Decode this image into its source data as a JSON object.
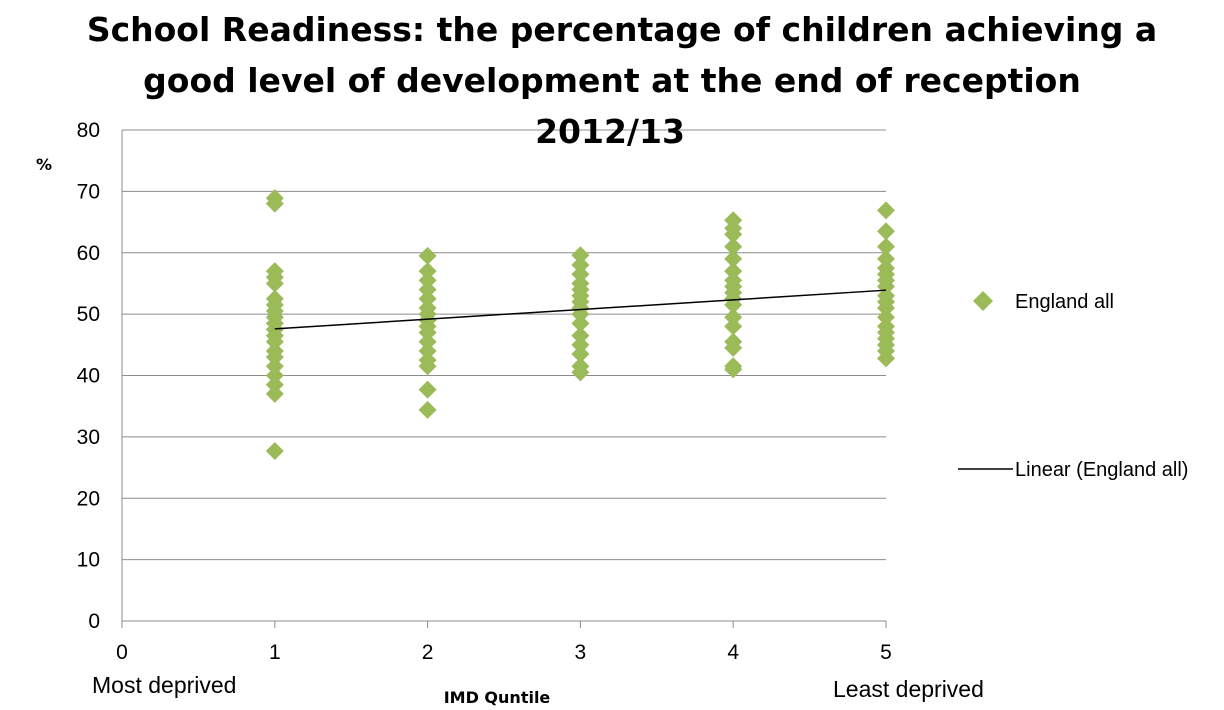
{
  "chart_data": {
    "type": "scatter",
    "title_lines": [
      "School Readiness: the percentage of children achieving a",
      "good level of development at the end of reception",
      "2012/13"
    ],
    "xlabel": "IMD Quntile",
    "ylabel": "%",
    "x_caption_left": "Most deprived",
    "x_caption_right": "Least deprived",
    "xlim": [
      0,
      5
    ],
    "ylim": [
      0,
      80
    ],
    "xticks": [
      0,
      1,
      2,
      3,
      4,
      5
    ],
    "yticks": [
      0,
      10,
      20,
      30,
      40,
      50,
      60,
      70,
      80
    ],
    "grid": "horizontal",
    "legend_position": "right",
    "series": [
      {
        "name": "England all",
        "marker": "diamond",
        "color": "#9BBB59",
        "points": [
          [
            1,
            68.9
          ],
          [
            1,
            68.0
          ],
          [
            1,
            57.0
          ],
          [
            1,
            56.0
          ],
          [
            1,
            55.0
          ],
          [
            1,
            52.5
          ],
          [
            1,
            51.5
          ],
          [
            1,
            50.5
          ],
          [
            1,
            49.5
          ],
          [
            1,
            48.5
          ],
          [
            1,
            47.5
          ],
          [
            1,
            46.5
          ],
          [
            1,
            45.5
          ],
          [
            1,
            44.0
          ],
          [
            1,
            43.0
          ],
          [
            1,
            41.5
          ],
          [
            1,
            40.0
          ],
          [
            1,
            38.5
          ],
          [
            1,
            37.0
          ],
          [
            1,
            27.7
          ],
          [
            2,
            59.5
          ],
          [
            2,
            57.0
          ],
          [
            2,
            55.5
          ],
          [
            2,
            54.0
          ],
          [
            2,
            52.5
          ],
          [
            2,
            51.0
          ],
          [
            2,
            50.0
          ],
          [
            2,
            49.0
          ],
          [
            2,
            48.0
          ],
          [
            2,
            47.0
          ],
          [
            2,
            45.5
          ],
          [
            2,
            44.0
          ],
          [
            2,
            42.5
          ],
          [
            2,
            41.5
          ],
          [
            2,
            37.7
          ],
          [
            2,
            34.4
          ],
          [
            3,
            59.6
          ],
          [
            3,
            58.0
          ],
          [
            3,
            56.5
          ],
          [
            3,
            55.0
          ],
          [
            3,
            54.0
          ],
          [
            3,
            53.0
          ],
          [
            3,
            52.0
          ],
          [
            3,
            51.0
          ],
          [
            3,
            50.0
          ],
          [
            3,
            48.5
          ],
          [
            3,
            46.5
          ],
          [
            3,
            45.0
          ],
          [
            3,
            43.5
          ],
          [
            3,
            41.5
          ],
          [
            3,
            40.5
          ],
          [
            4,
            65.3
          ],
          [
            4,
            64.0
          ],
          [
            4,
            63.0
          ],
          [
            4,
            61.0
          ],
          [
            4,
            59.0
          ],
          [
            4,
            57.0
          ],
          [
            4,
            55.5
          ],
          [
            4,
            54.5
          ],
          [
            4,
            53.5
          ],
          [
            4,
            52.5
          ],
          [
            4,
            51.5
          ],
          [
            4,
            49.5
          ],
          [
            4,
            48.0
          ],
          [
            4,
            45.5
          ],
          [
            4,
            44.5
          ],
          [
            4,
            41.5
          ],
          [
            4,
            41.0
          ],
          [
            5,
            66.9
          ],
          [
            5,
            63.5
          ],
          [
            5,
            61.0
          ],
          [
            5,
            59.0
          ],
          [
            5,
            57.5
          ],
          [
            5,
            56.5
          ],
          [
            5,
            55.5
          ],
          [
            5,
            54.5
          ],
          [
            5,
            53.0
          ],
          [
            5,
            52.0
          ],
          [
            5,
            51.0
          ],
          [
            5,
            49.5
          ],
          [
            5,
            48.0
          ],
          [
            5,
            47.0
          ],
          [
            5,
            46.0
          ],
          [
            5,
            45.0
          ],
          [
            5,
            44.0
          ],
          [
            5,
            42.8
          ]
        ]
      },
      {
        "name": "Linear (England all)",
        "type": "line",
        "color": "#000000",
        "points": [
          [
            1,
            47.6
          ],
          [
            5,
            53.9
          ]
        ]
      }
    ]
  }
}
